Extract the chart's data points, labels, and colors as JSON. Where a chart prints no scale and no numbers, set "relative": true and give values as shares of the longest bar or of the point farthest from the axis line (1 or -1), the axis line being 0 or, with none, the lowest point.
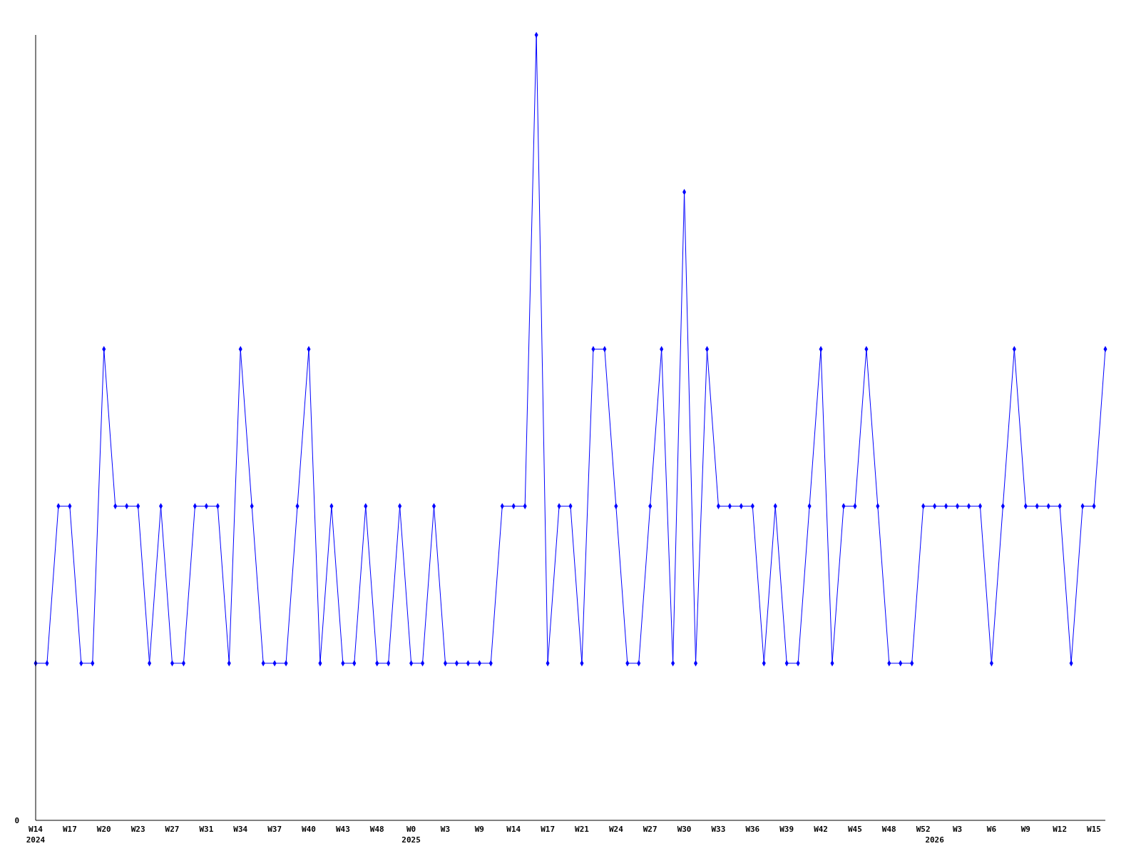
{
  "chart_data": {
    "type": "line",
    "relative": true,
    "marker": "diamond",
    "line_style": "solid",
    "annotations": [
      "0"
    ],
    "categories": [
      "W14\n2024",
      null,
      null,
      "W17",
      null,
      null,
      "W20",
      null,
      null,
      "W23",
      null,
      null,
      "W27",
      null,
      null,
      "W31",
      null,
      null,
      "W34",
      null,
      null,
      "W37",
      null,
      null,
      "W40",
      null,
      null,
      "W43",
      null,
      null,
      "W48",
      null,
      null,
      "W0\n2025",
      null,
      null,
      "W3",
      null,
      null,
      "W9",
      null,
      null,
      "W14",
      null,
      null,
      "W17",
      null,
      null,
      "W21",
      null,
      null,
      "W24",
      null,
      null,
      "W27",
      null,
      null,
      "W30",
      null,
      null,
      "W33",
      null,
      null,
      "W36",
      null,
      null,
      "W39",
      null,
      null,
      "W42",
      null,
      null,
      "W45",
      null,
      null,
      "W48",
      null,
      null,
      "W52",
      "\n2026",
      null,
      "W3",
      null,
      null,
      "W6",
      null,
      null,
      "W9",
      null,
      null,
      "W12",
      null,
      null,
      "W15",
      null
    ],
    "series": [
      {
        "color": "#0000ff",
        "values": [
          0.2,
          0.2,
          0.4,
          0.4,
          0.2,
          0.2,
          0.6,
          0.4,
          0.4,
          0.4,
          0.2,
          0.4,
          0.2,
          0.2,
          0.4,
          0.4,
          0.4,
          0.2,
          0.6,
          0.4,
          0.2,
          0.2,
          0.2,
          0.4,
          0.6,
          0.2,
          0.4,
          0.2,
          0.2,
          0.4,
          0.2,
          0.2,
          0.4,
          0.2,
          0.2,
          0.4,
          0.2,
          0.2,
          0.2,
          0.2,
          0.2,
          0.4,
          0.4,
          0.4,
          1,
          0.2,
          0.4,
          0.4,
          0.2,
          0.6,
          0.6,
          0.4,
          0.2,
          0.2,
          0.4,
          0.6,
          0.2,
          0.8,
          0.2,
          0.6,
          0.4,
          0.4,
          0.4,
          0.4,
          0.2,
          0.4,
          0.2,
          0.2,
          0.4,
          0.6,
          0.2,
          0.4,
          0.4,
          0.6,
          0.4,
          0.2,
          0.2,
          0.2,
          0.4,
          0.4,
          0.4,
          0.4,
          0.4,
          0.4,
          0.2,
          0.4,
          0.6,
          0.4,
          0.4,
          0.4,
          0.4,
          0.2,
          0.4,
          0.4,
          0.6
        ]
      }
    ]
  }
}
